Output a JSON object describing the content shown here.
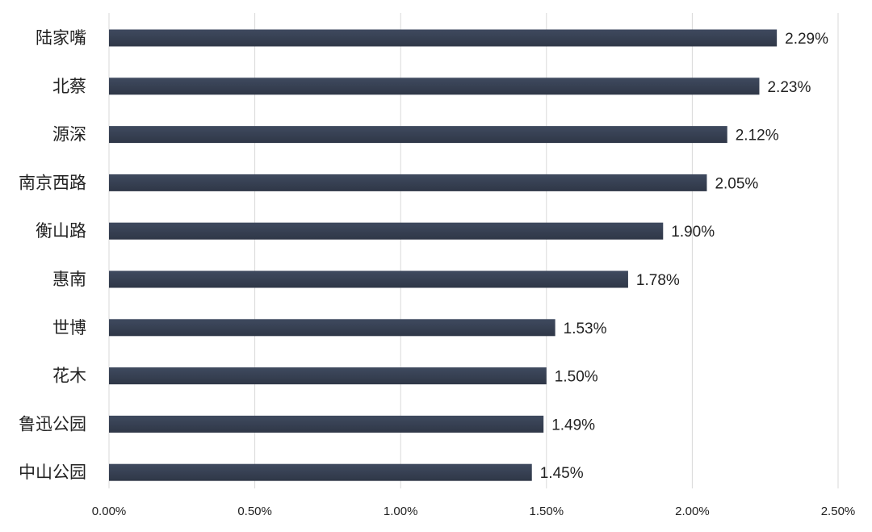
{
  "colors": {
    "bar": "#2f3747",
    "bar_highlight": "#3f4a5f",
    "gridline": "#d9d9d9",
    "text": "#222222",
    "background": "#ffffff"
  },
  "chart_data": {
    "type": "bar",
    "orientation": "horizontal",
    "title": "",
    "xlabel": "",
    "ylabel": "",
    "categories": [
      "陆家嘴",
      "北蔡",
      "源深",
      "南京西路",
      "衡山路",
      "惠南",
      "世博",
      "花木",
      "鲁迅公园",
      "中山公园"
    ],
    "values": [
      2.29,
      2.23,
      2.12,
      2.05,
      1.9,
      1.78,
      1.53,
      1.5,
      1.49,
      1.45
    ],
    "value_labels": [
      "2.29%",
      "2.23%",
      "2.12%",
      "2.05%",
      "1.90%",
      "1.78%",
      "1.53%",
      "1.50%",
      "1.49%",
      "1.45%"
    ],
    "xlim": [
      0,
      2.5
    ],
    "x_ticks": [
      0,
      0.5,
      1.0,
      1.5,
      2.0,
      2.5
    ],
    "x_tick_labels": [
      "0.00%",
      "0.50%",
      "1.00%",
      "1.50%",
      "2.00%",
      "2.50%"
    ],
    "grid": true,
    "legend": "none"
  }
}
